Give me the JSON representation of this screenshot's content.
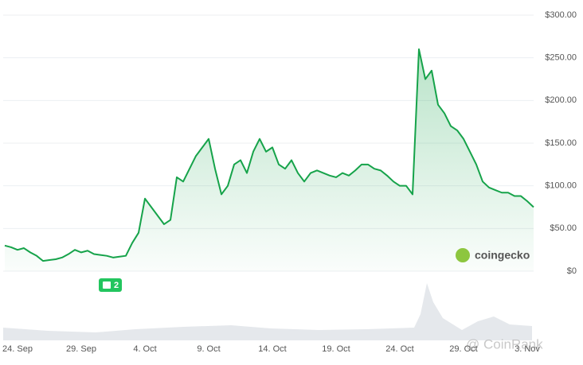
{
  "chart_data": {
    "type": "line",
    "categories": [
      null,
      null,
      "24. Sep",
      null,
      null,
      null,
      null,
      null,
      null,
      null,
      null,
      null,
      "29. Sep",
      null,
      null,
      null,
      null,
      null,
      null,
      null,
      null,
      null,
      "4. Oct",
      null,
      null,
      null,
      null,
      null,
      null,
      null,
      null,
      null,
      "9. Oct",
      null,
      null,
      null,
      null,
      null,
      null,
      null,
      null,
      null,
      "14. Oct",
      null,
      null,
      null,
      null,
      null,
      null,
      null,
      null,
      null,
      "19. Oct",
      null,
      null,
      null,
      null,
      null,
      null,
      null,
      null,
      null,
      "24. Oct",
      null,
      null,
      null,
      null,
      null,
      null,
      null,
      null,
      null,
      "29. Oct",
      null,
      null,
      null,
      null,
      null,
      null,
      null,
      null,
      null,
      "3. Nov",
      null
    ],
    "series": [
      {
        "color": "#16a34a",
        "values": [
          30,
          28,
          25,
          27,
          22,
          18,
          12,
          13,
          14,
          16,
          20,
          25,
          22,
          24,
          20,
          19,
          18,
          16,
          17,
          18,
          33,
          45,
          85,
          75,
          65,
          55,
          60,
          110,
          105,
          120,
          135,
          145,
          155,
          120,
          90,
          100,
          125,
          130,
          115,
          140,
          155,
          140,
          145,
          125,
          120,
          130,
          115,
          105,
          115,
          118,
          115,
          112,
          110,
          115,
          112,
          118,
          125,
          125,
          120,
          118,
          112,
          105,
          100,
          100,
          90,
          260,
          225,
          235,
          195,
          185,
          170,
          165,
          155,
          140,
          125,
          105,
          98,
          95,
          92,
          92,
          88,
          88,
          82,
          75
        ]
      }
    ],
    "ylim": [
      0,
      300
    ],
    "yticks": [
      {
        "value": 0,
        "label": "$0"
      },
      {
        "value": 50,
        "label": "$50.00"
      },
      {
        "value": 100,
        "label": "$100.00"
      },
      {
        "value": 150,
        "label": "$150.00"
      },
      {
        "value": 200,
        "label": "$200.00"
      },
      {
        "value": 250,
        "label": "$250.00"
      },
      {
        "value": 300,
        "label": "$300.00"
      }
    ],
    "grid": true,
    "badge": "2",
    "watermark": "coingecko",
    "source_watermark": "@ CoinRank"
  }
}
